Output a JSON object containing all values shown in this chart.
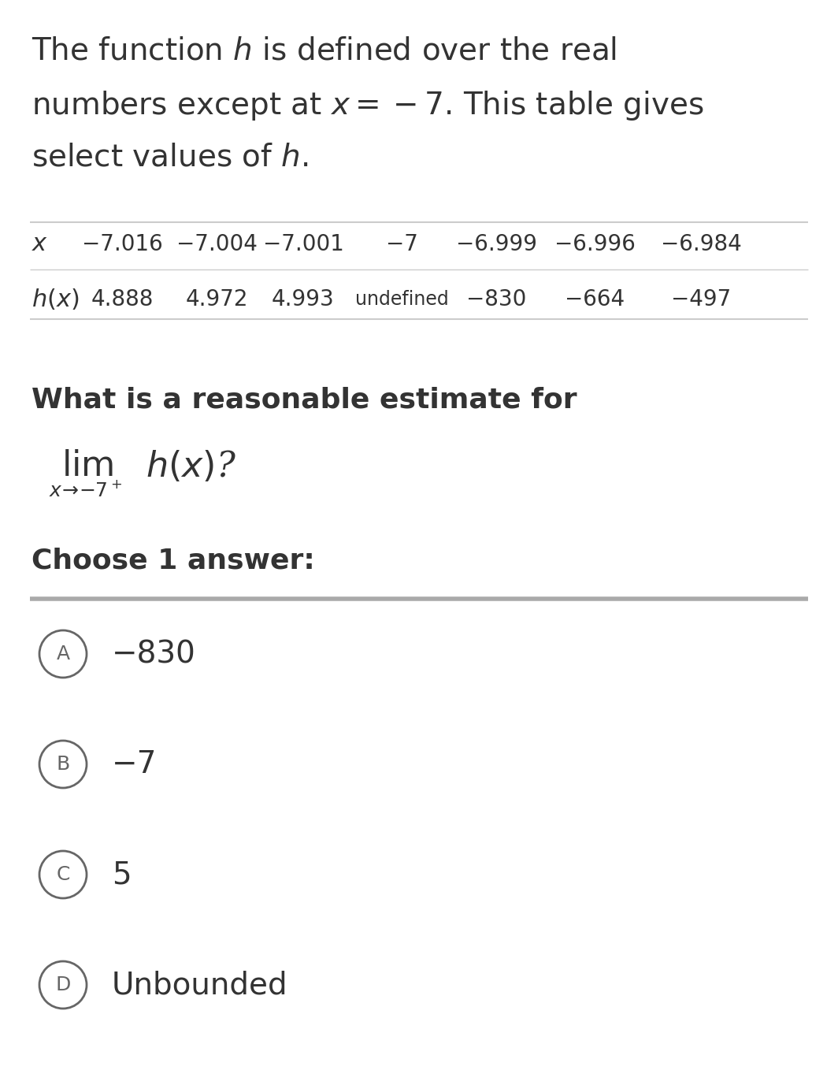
{
  "bg_color": "#ffffff",
  "title_lines": [
    "The function $\\mathit{h}$ is defined over the real",
    "numbers except at $x = -7$. This table gives",
    "select values of $\\mathit{h}$."
  ],
  "x_label": "$x$",
  "hx_label": "$h(x)$",
  "x_values": [
    "−7.016",
    "−7.004",
    "−7.001",
    "−7",
    "−6.999",
    "−6.996",
    "−6.984"
  ],
  "h_values": [
    "4.888",
    "4.972",
    "4.993",
    "undefined",
    "−830",
    "−664",
    "−497"
  ],
  "question_line1": "What is a reasonable estimate for",
  "lim_text": "lim",
  "lim_sub": "$x\\!\\to\\!{-7}^+$",
  "hx_text": "$h(x)$?",
  "choose_text": "Choose 1 answer:",
  "choices": [
    {
      "label": "A",
      "text": "−830"
    },
    {
      "label": "B",
      "text": "−7"
    },
    {
      "label": "C",
      "text": "5"
    },
    {
      "label": "D",
      "text": "Unbounded"
    }
  ],
  "title_fontsize": 28,
  "table_fontsize": 20,
  "question_fontsize": 26,
  "lim_fontsize": 32,
  "lim_sub_fontsize": 18,
  "choose_fontsize": 26,
  "choice_label_fontsize": 18,
  "choice_text_fontsize": 28,
  "circle_color": "#666666",
  "text_color": "#333333",
  "line_color": "#aaaaaa",
  "table_line_color": "#cccccc"
}
